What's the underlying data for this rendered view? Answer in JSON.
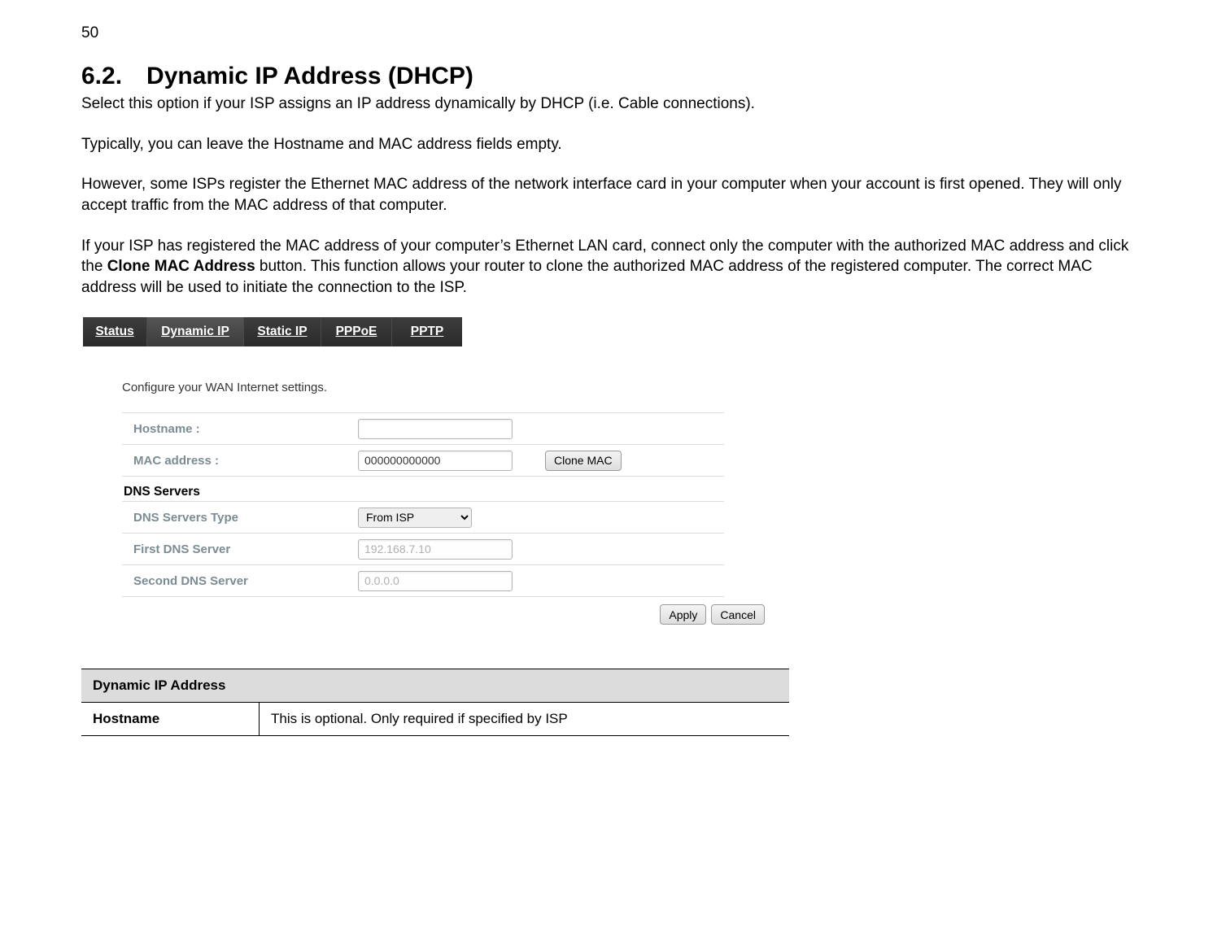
{
  "page_number": "50",
  "heading_number": "6.2.",
  "heading_title": "Dynamic IP Address (DHCP)",
  "para1": "Select this option if your ISP assigns an IP address dynamically by DHCP (i.e. Cable connections).",
  "para2": "Typically, you can leave the Hostname and MAC address fields empty.",
  "para3": "However, some ISPs register the Ethernet MAC address of the network interface card in your computer when your account is first opened. They will only accept traffic from the MAC address of that computer.",
  "para4_pre": "If your ISP has registered the MAC address of your computer’s Ethernet LAN card, connect only the computer with the authorized MAC address and click the ",
  "para4_bold": "Clone MAC Address",
  "para4_post": " button. This function allows your router to clone the authorized MAC address of the registered computer. The correct MAC address will be used to initiate the connection to the ISP.",
  "tabs": {
    "status": "Status",
    "dynamic": "Dynamic IP",
    "static": "Static IP",
    "pppoe": "PPPoE",
    "pptp": "PPTP"
  },
  "panel": {
    "desc": "Configure your WAN Internet settings.",
    "hostname_label": "Hostname :",
    "hostname_value": "",
    "mac_label": "MAC address :",
    "mac_value": "000000000000",
    "clone_label": "Clone MAC",
    "dns_section": "DNS Servers",
    "dns_type_label": "DNS Servers Type",
    "dns_type_value": "From ISP",
    "dns1_label": "First DNS Server",
    "dns1_value": "192.168.7.10",
    "dns2_label": "Second DNS Server",
    "dns2_value": "0.0.0.0",
    "apply": "Apply",
    "cancel": "Cancel"
  },
  "doc_table": {
    "header": "Dynamic IP Address",
    "row1_label": "Hostname",
    "row1_text": "This is optional. Only required if specified by ISP"
  }
}
